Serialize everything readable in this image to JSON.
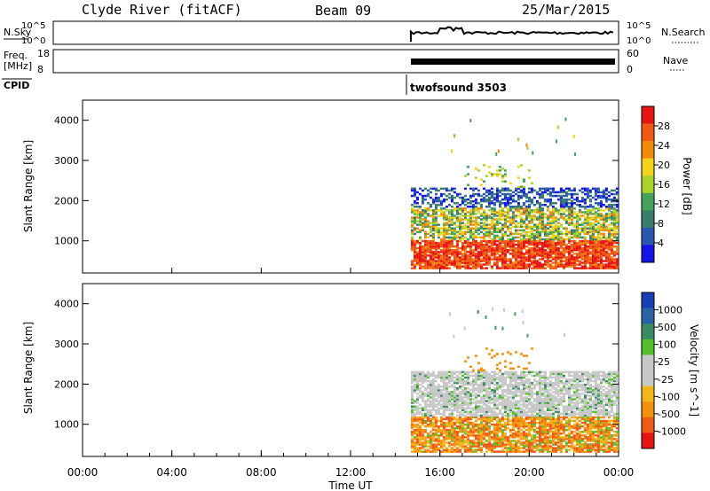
{
  "header": {
    "station": "Clyde River (fitACF)",
    "beam": "Beam 09",
    "date": "25/Mar/2015"
  },
  "strip_panels": {
    "nsky_label": "N.Sky",
    "nsky_ticks": [
      "10^5",
      "10^0"
    ],
    "nsearch_label": "N.Search",
    "nsearch_ticks": [
      "10^5",
      "10^0"
    ],
    "freq_label": "Freq.",
    "freq_unit": "[MHz]",
    "freq_ticks": [
      "18",
      "8"
    ],
    "nave_label": "Nave",
    "nave_ticks": [
      "60",
      "0"
    ],
    "cpid_label": "CPID",
    "cpid_value": "twofsound 3503"
  },
  "colors": {
    "power_scale": [
      "#1414e6",
      "#2a57b0",
      "#3a7d6a",
      "#46a25a",
      "#a8d22c",
      "#f2d21a",
      "#f28a10",
      "#ee5a14",
      "#e61414"
    ],
    "velocity_scale": [
      "#e61414",
      "#ef5a14",
      "#f49010",
      "#f4b41c",
      "#c8c8c8",
      "#c8c8c8",
      "#54c02c",
      "#3a8a64",
      "#2a62a6",
      "#1a3fb4"
    ]
  },
  "chart_data": [
    {
      "type": "heatmap",
      "panel": "power",
      "ylabel": "Slant Range [km]",
      "yticks": [
        "1000",
        "2000",
        "3000",
        "4000"
      ],
      "ylim": [
        200,
        4500
      ],
      "xlim_hours": [
        0,
        24
      ],
      "data_start_hour": 14.7,
      "colorbar_label": "Power [dB]",
      "colorbar_ticks": [
        "4",
        "8",
        "12",
        "16",
        "20",
        "24",
        "28"
      ],
      "colorbar_range": [
        0,
        32
      ],
      "bands": [
        {
          "from_km": 300,
          "to_km": 1000,
          "level": "high"
        },
        {
          "from_km": 1000,
          "to_km": 1800,
          "level": "medium"
        },
        {
          "from_km": 1800,
          "to_km": 2300,
          "level": "low"
        }
      ]
    },
    {
      "type": "heatmap",
      "panel": "velocity",
      "ylabel": "Slant Range [km]",
      "yticks": [
        "1000",
        "2000",
        "3000",
        "4000"
      ],
      "ylim": [
        200,
        4500
      ],
      "xlim_hours": [
        0,
        24
      ],
      "data_start_hour": 14.7,
      "colorbar_label": "Velocity [m s^-1]",
      "colorbar_ticks": [
        "1000",
        "500",
        "100",
        "25",
        "-25",
        "-100",
        "-500",
        "-1000"
      ],
      "bands": [
        {
          "from_km": 400,
          "to_km": 1200,
          "level": "-300"
        },
        {
          "from_km": 1200,
          "to_km": 2300,
          "level": "0"
        }
      ]
    }
  ],
  "xaxis": {
    "ticks": [
      "00:00",
      "04:00",
      "08:00",
      "12:00",
      "16:00",
      "20:00",
      "00:00"
    ],
    "label": "Time UT"
  }
}
